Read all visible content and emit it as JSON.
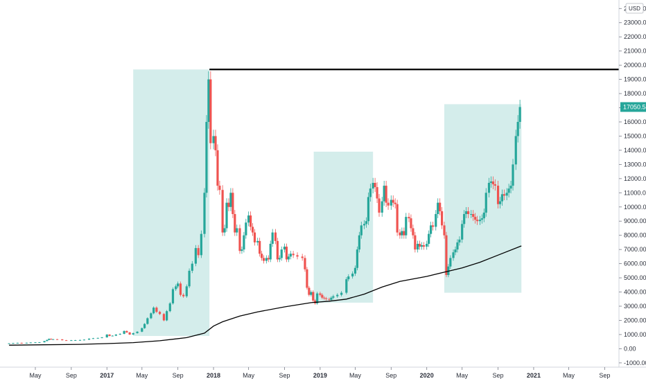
{
  "chart_data": {
    "type": "candlestick",
    "currency": "USD",
    "last_price_label": "17050.54",
    "last_price": 17050.54,
    "ylim": [
      -1300,
      24600
    ],
    "y_ticks": [
      -1000,
      0,
      1000,
      2000,
      3000,
      4000,
      5000,
      6000,
      7000,
      8000,
      9000,
      10000,
      11000,
      12000,
      13000,
      14000,
      15000,
      16000,
      17000,
      18000,
      19000,
      20000,
      21000,
      22000,
      23000,
      24000
    ],
    "y_tick_labels": [
      "-1000.00",
      "0.00",
      "1000.00",
      "2000.00",
      "3000.00",
      "4000.00",
      "5000.00",
      "6000.00",
      "7000.00",
      "8000.00",
      "9000.00",
      "10000.00",
      "11000.00",
      "12000.00",
      "13000.00",
      "14000.00",
      "15000.00",
      "16000.00",
      "17000.00",
      "18000.00",
      "19000.00",
      "20000.00",
      "21000.00",
      "22000.00",
      "23000.00",
      "24000.00"
    ],
    "x_range": [
      "2016-02-01",
      "2021-12-01"
    ],
    "x_ticks": [
      {
        "date": "2016-05-01",
        "label": "May",
        "bold": false
      },
      {
        "date": "2016-09-01",
        "label": "Sep",
        "bold": false
      },
      {
        "date": "2017-01-01",
        "label": "2017",
        "bold": true
      },
      {
        "date": "2017-05-01",
        "label": "May",
        "bold": false
      },
      {
        "date": "2017-09-01",
        "label": "Sep",
        "bold": false
      },
      {
        "date": "2018-01-01",
        "label": "2018",
        "bold": true
      },
      {
        "date": "2018-05-01",
        "label": "May",
        "bold": false
      },
      {
        "date": "2018-09-01",
        "label": "Sep",
        "bold": false
      },
      {
        "date": "2019-01-01",
        "label": "2019",
        "bold": true
      },
      {
        "date": "2019-05-01",
        "label": "May",
        "bold": false
      },
      {
        "date": "2019-09-01",
        "label": "Sep",
        "bold": false
      },
      {
        "date": "2020-01-01",
        "label": "2020",
        "bold": true
      },
      {
        "date": "2020-05-01",
        "label": "May",
        "bold": false
      },
      {
        "date": "2020-09-01",
        "label": "Sep",
        "bold": false
      },
      {
        "date": "2021-01-01",
        "label": "2021",
        "bold": true
      },
      {
        "date": "2021-05-01",
        "label": "May",
        "bold": false
      },
      {
        "date": "2021-09-01",
        "label": "Sep",
        "bold": false
      }
    ],
    "ohlc_weekly_close": [
      [
        "2016-02-01",
        380
      ],
      [
        "2016-02-15",
        400
      ],
      [
        "2016-03-01",
        415
      ],
      [
        "2016-03-15",
        412
      ],
      [
        "2016-04-01",
        420
      ],
      [
        "2016-04-15",
        440
      ],
      [
        "2016-05-01",
        450
      ],
      [
        "2016-05-15",
        455
      ],
      [
        "2016-06-01",
        540
      ],
      [
        "2016-06-10",
        620
      ],
      [
        "2016-06-17",
        700
      ],
      [
        "2016-06-24",
        650
      ],
      [
        "2016-07-01",
        670
      ],
      [
        "2016-07-15",
        660
      ],
      [
        "2016-08-01",
        600
      ],
      [
        "2016-08-15",
        580
      ],
      [
        "2016-09-01",
        600
      ],
      [
        "2016-09-15",
        605
      ],
      [
        "2016-10-01",
        615
      ],
      [
        "2016-10-15",
        640
      ],
      [
        "2016-11-01",
        710
      ],
      [
        "2016-11-15",
        740
      ],
      [
        "2016-12-01",
        760
      ],
      [
        "2016-12-15",
        800
      ],
      [
        "2017-01-01",
        1000
      ],
      [
        "2017-01-10",
        900
      ],
      [
        "2017-01-20",
        920
      ],
      [
        "2017-02-01",
        1000
      ],
      [
        "2017-02-15",
        1050
      ],
      [
        "2017-03-01",
        1250
      ],
      [
        "2017-03-10",
        1150
      ],
      [
        "2017-03-20",
        1000
      ],
      [
        "2017-04-01",
        1100
      ],
      [
        "2017-04-15",
        1200
      ],
      [
        "2017-05-01",
        1450
      ],
      [
        "2017-05-10",
        1750
      ],
      [
        "2017-05-20",
        2150
      ],
      [
        "2017-06-01",
        2500
      ],
      [
        "2017-06-10",
        2900
      ],
      [
        "2017-06-20",
        2600
      ],
      [
        "2017-07-01",
        2450
      ],
      [
        "2017-07-15",
        2000
      ],
      [
        "2017-07-25",
        2650
      ],
      [
        "2017-08-05",
        3200
      ],
      [
        "2017-08-15",
        4200
      ],
      [
        "2017-08-25",
        4400
      ],
      [
        "2017-09-01",
        4600
      ],
      [
        "2017-09-10",
        3800
      ],
      [
        "2017-09-20",
        3700
      ],
      [
        "2017-10-01",
        4400
      ],
      [
        "2017-10-10",
        5500
      ],
      [
        "2017-10-20",
        6000
      ],
      [
        "2017-11-01",
        7100
      ],
      [
        "2017-11-10",
        6600
      ],
      [
        "2017-11-20",
        8100
      ],
      [
        "2017-12-01",
        11000
      ],
      [
        "2017-12-08",
        16000
      ],
      [
        "2017-12-15",
        19000
      ],
      [
        "2017-12-22",
        14500
      ],
      [
        "2018-01-01",
        15000
      ],
      [
        "2018-01-08",
        14000
      ],
      [
        "2018-01-15",
        11500
      ],
      [
        "2018-01-22",
        11200
      ],
      [
        "2018-02-01",
        8200
      ],
      [
        "2018-02-08",
        8500
      ],
      [
        "2018-02-15",
        10300
      ],
      [
        "2018-02-22",
        10000
      ],
      [
        "2018-03-01",
        11000
      ],
      [
        "2018-03-08",
        9500
      ],
      [
        "2018-03-15",
        8200
      ],
      [
        "2018-03-22",
        8500
      ],
      [
        "2018-04-01",
        6900
      ],
      [
        "2018-04-08",
        7000
      ],
      [
        "2018-04-15",
        8000
      ],
      [
        "2018-04-22",
        8900
      ],
      [
        "2018-05-01",
        9400
      ],
      [
        "2018-05-08",
        8600
      ],
      [
        "2018-05-15",
        8200
      ],
      [
        "2018-05-22",
        7500
      ],
      [
        "2018-06-01",
        7600
      ],
      [
        "2018-06-08",
        6700
      ],
      [
        "2018-06-15",
        6400
      ],
      [
        "2018-06-22",
        6200
      ],
      [
        "2018-07-01",
        6400
      ],
      [
        "2018-07-08",
        6300
      ],
      [
        "2018-07-15",
        7400
      ],
      [
        "2018-07-22",
        8200
      ],
      [
        "2018-08-01",
        7600
      ],
      [
        "2018-08-08",
        6300
      ],
      [
        "2018-08-15",
        6400
      ],
      [
        "2018-08-22",
        7000
      ],
      [
        "2018-09-01",
        7200
      ],
      [
        "2018-09-08",
        6300
      ],
      [
        "2018-09-15",
        6500
      ],
      [
        "2018-09-22",
        6700
      ],
      [
        "2018-10-01",
        6600
      ],
      [
        "2018-10-15",
        6500
      ],
      [
        "2018-11-01",
        6400
      ],
      [
        "2018-11-10",
        5600
      ],
      [
        "2018-11-17",
        4300
      ],
      [
        "2018-11-24",
        3800
      ],
      [
        "2018-12-01",
        4000
      ],
      [
        "2018-12-08",
        3400
      ],
      [
        "2018-12-15",
        3200
      ],
      [
        "2018-12-22",
        3900
      ],
      [
        "2019-01-01",
        3800
      ],
      [
        "2019-01-08",
        3600
      ],
      [
        "2019-01-15",
        3550
      ],
      [
        "2019-01-22",
        3500
      ],
      [
        "2019-02-01",
        3450
      ],
      [
        "2019-02-08",
        3600
      ],
      [
        "2019-02-15",
        3700
      ],
      [
        "2019-03-01",
        3800
      ],
      [
        "2019-03-15",
        3950
      ],
      [
        "2019-04-01",
        4900
      ],
      [
        "2019-04-08",
        5100
      ],
      [
        "2019-04-22",
        5300
      ],
      [
        "2019-05-01",
        5700
      ],
      [
        "2019-05-08",
        7000
      ],
      [
        "2019-05-15",
        8000
      ],
      [
        "2019-05-22",
        8700
      ],
      [
        "2019-06-01",
        8800
      ],
      [
        "2019-06-08",
        9000
      ],
      [
        "2019-06-15",
        10700
      ],
      [
        "2019-06-22",
        11300
      ],
      [
        "2019-07-01",
        11700
      ],
      [
        "2019-07-08",
        11400
      ],
      [
        "2019-07-15",
        10600
      ],
      [
        "2019-07-22",
        9600
      ],
      [
        "2019-08-01",
        10400
      ],
      [
        "2019-08-08",
        11500
      ],
      [
        "2019-08-15",
        10300
      ],
      [
        "2019-08-22",
        10100
      ],
      [
        "2019-09-01",
        10500
      ],
      [
        "2019-09-08",
        10300
      ],
      [
        "2019-09-15",
        10200
      ],
      [
        "2019-09-22",
        8200
      ],
      [
        "2019-10-01",
        8000
      ],
      [
        "2019-10-08",
        8300
      ],
      [
        "2019-10-15",
        8000
      ],
      [
        "2019-10-22",
        9300
      ],
      [
        "2019-11-01",
        9200
      ],
      [
        "2019-11-08",
        8500
      ],
      [
        "2019-11-15",
        8000
      ],
      [
        "2019-11-22",
        7000
      ],
      [
        "2019-12-01",
        7400
      ],
      [
        "2019-12-08",
        7200
      ],
      [
        "2019-12-15",
        7300
      ],
      [
        "2019-12-22",
        7200
      ],
      [
        "2020-01-01",
        7400
      ],
      [
        "2020-01-08",
        8100
      ],
      [
        "2020-01-15",
        8700
      ],
      [
        "2020-01-22",
        8600
      ],
      [
        "2020-02-01",
        9500
      ],
      [
        "2020-02-08",
        10300
      ],
      [
        "2020-02-15",
        9700
      ],
      [
        "2020-02-22",
        8700
      ],
      [
        "2020-03-01",
        8000
      ],
      [
        "2020-03-08",
        5200
      ],
      [
        "2020-03-15",
        5800
      ],
      [
        "2020-03-22",
        6400
      ],
      [
        "2020-04-01",
        6800
      ],
      [
        "2020-04-08",
        7000
      ],
      [
        "2020-04-15",
        7500
      ],
      [
        "2020-04-22",
        7700
      ],
      [
        "2020-05-01",
        8800
      ],
      [
        "2020-05-08",
        9500
      ],
      [
        "2020-05-15",
        9700
      ],
      [
        "2020-05-22",
        9500
      ],
      [
        "2020-06-01",
        9500
      ],
      [
        "2020-06-08",
        9300
      ],
      [
        "2020-06-15",
        9100
      ],
      [
        "2020-06-22",
        9000
      ],
      [
        "2020-07-01",
        9100
      ],
      [
        "2020-07-08",
        9200
      ],
      [
        "2020-07-15",
        9600
      ],
      [
        "2020-07-22",
        11000
      ],
      [
        "2020-08-01",
        11700
      ],
      [
        "2020-08-08",
        11800
      ],
      [
        "2020-08-15",
        11600
      ],
      [
        "2020-08-22",
        11500
      ],
      [
        "2020-09-01",
        10200
      ],
      [
        "2020-09-08",
        10400
      ],
      [
        "2020-09-15",
        10900
      ],
      [
        "2020-09-22",
        10800
      ],
      [
        "2020-10-01",
        11000
      ],
      [
        "2020-10-08",
        11300
      ],
      [
        "2020-10-15",
        11500
      ],
      [
        "2020-10-22",
        13000
      ],
      [
        "2020-11-01",
        15000
      ],
      [
        "2020-11-08",
        16000
      ],
      [
        "2020-11-15",
        17050
      ]
    ],
    "moving_average_line": [
      [
        "2016-02-01",
        250
      ],
      [
        "2016-06-01",
        280
      ],
      [
        "2016-10-01",
        310
      ],
      [
        "2017-01-01",
        360
      ],
      [
        "2017-04-01",
        430
      ],
      [
        "2017-07-01",
        560
      ],
      [
        "2017-10-01",
        780
      ],
      [
        "2017-12-01",
        1100
      ],
      [
        "2018-01-01",
        1600
      ],
      [
        "2018-02-01",
        1900
      ],
      [
        "2018-04-01",
        2300
      ],
      [
        "2018-06-01",
        2600
      ],
      [
        "2018-09-01",
        2950
      ],
      [
        "2018-12-01",
        3250
      ],
      [
        "2019-02-01",
        3350
      ],
      [
        "2019-04-01",
        3500
      ],
      [
        "2019-06-01",
        3850
      ],
      [
        "2019-08-01",
        4350
      ],
      [
        "2019-10-01",
        4750
      ],
      [
        "2020-01-01",
        5100
      ],
      [
        "2020-03-01",
        5400
      ],
      [
        "2020-05-01",
        5700
      ],
      [
        "2020-07-01",
        6100
      ],
      [
        "2020-09-01",
        6600
      ],
      [
        "2020-11-20",
        7250
      ]
    ],
    "resistance_line": {
      "price": 19700,
      "from": "2017-12-18",
      "to": "2021-12-01"
    },
    "highlight_zones": [
      {
        "from": "2017-04-01",
        "to": "2017-12-18",
        "low": 900,
        "high": 19700
      },
      {
        "from": "2018-12-10",
        "to": "2019-07-01",
        "low": 3250,
        "high": 13900
      },
      {
        "from": "2020-03-01",
        "to": "2020-11-20",
        "low": 3950,
        "high": 17250
      }
    ],
    "colors": {
      "up": "#26a69a",
      "down": "#ef5350",
      "zone": "#26a69a",
      "ma": "#000000",
      "badge": "#26a69a"
    }
  }
}
